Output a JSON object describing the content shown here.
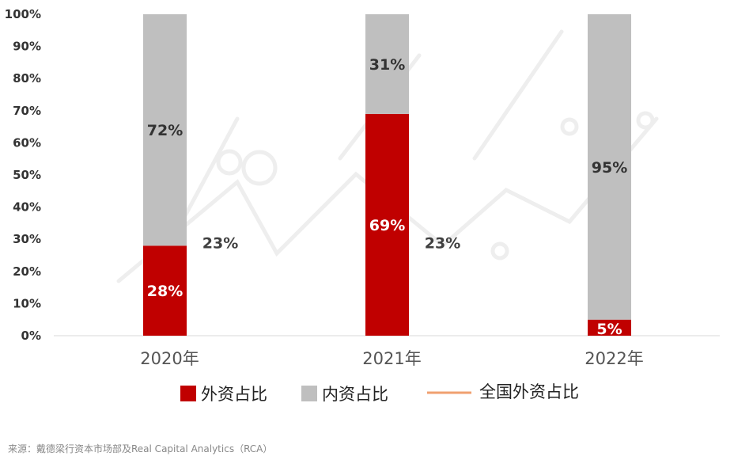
{
  "chart_data": {
    "type": "bar",
    "stacked": true,
    "categories": [
      "2020年",
      "2021年",
      "2022年"
    ],
    "series": [
      {
        "name": "外资占比",
        "values": [
          28,
          69,
          5
        ],
        "labels": [
          "28%",
          "69%",
          "5%"
        ],
        "color": "#c00000",
        "label_color": "#ffffff"
      },
      {
        "name": "内资占比",
        "values": [
          72,
          31,
          95
        ],
        "labels": [
          "72%",
          "31%",
          "95%"
        ],
        "color": "#bfbfbf",
        "label_color": "#333333"
      }
    ],
    "reference_line": {
      "name": "全国外资占比",
      "values": [
        23,
        23
      ],
      "labels": [
        "23%",
        "23%"
      ],
      "color": "#f0a070"
    },
    "y_ticks": [
      "0%",
      "10%",
      "20%",
      "30%",
      "40%",
      "50%",
      "60%",
      "70%",
      "80%",
      "90%",
      "100%"
    ],
    "ylim": [
      0,
      100
    ],
    "legend_position": "bottom-center",
    "grid": false
  },
  "source": "来源：戴德梁行资本市场部及Real Capital Analytics（RCA）"
}
